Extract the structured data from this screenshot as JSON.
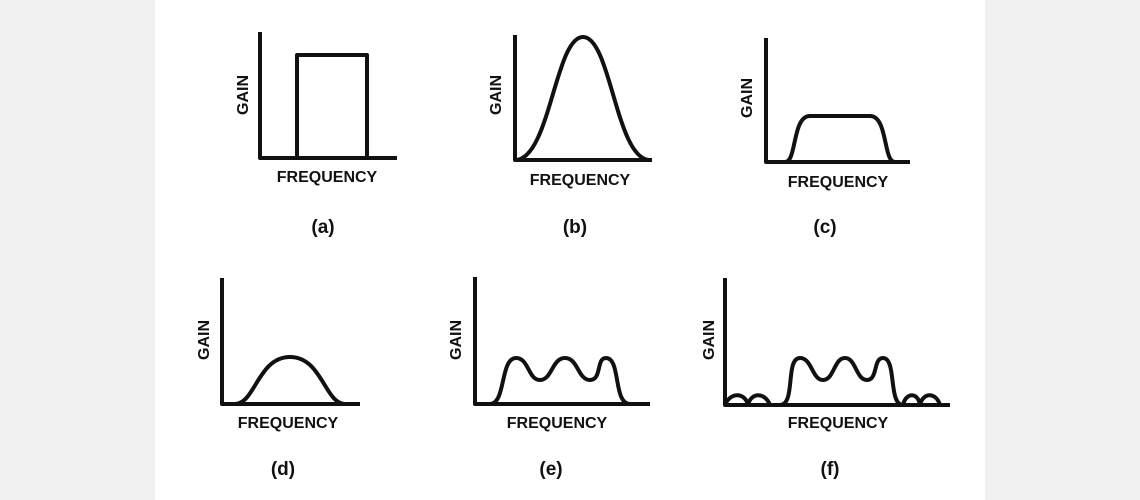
{
  "panels": [
    {
      "y_label": "GAIN",
      "x_label": "FREQUENCY",
      "caption": "(a)"
    },
    {
      "y_label": "GAIN",
      "x_label": "FREQUENCY",
      "caption": "(b)"
    },
    {
      "y_label": "GAIN",
      "x_label": "FREQUENCY",
      "caption": "(c)"
    },
    {
      "y_label": "GAIN",
      "x_label": "FREQUENCY",
      "caption": "(d)"
    },
    {
      "y_label": "GAIN",
      "x_label": "FREQUENCY",
      "caption": "(e)"
    },
    {
      "y_label": "GAIN",
      "x_label": "FREQUENCY",
      "caption": "(f)"
    }
  ]
}
